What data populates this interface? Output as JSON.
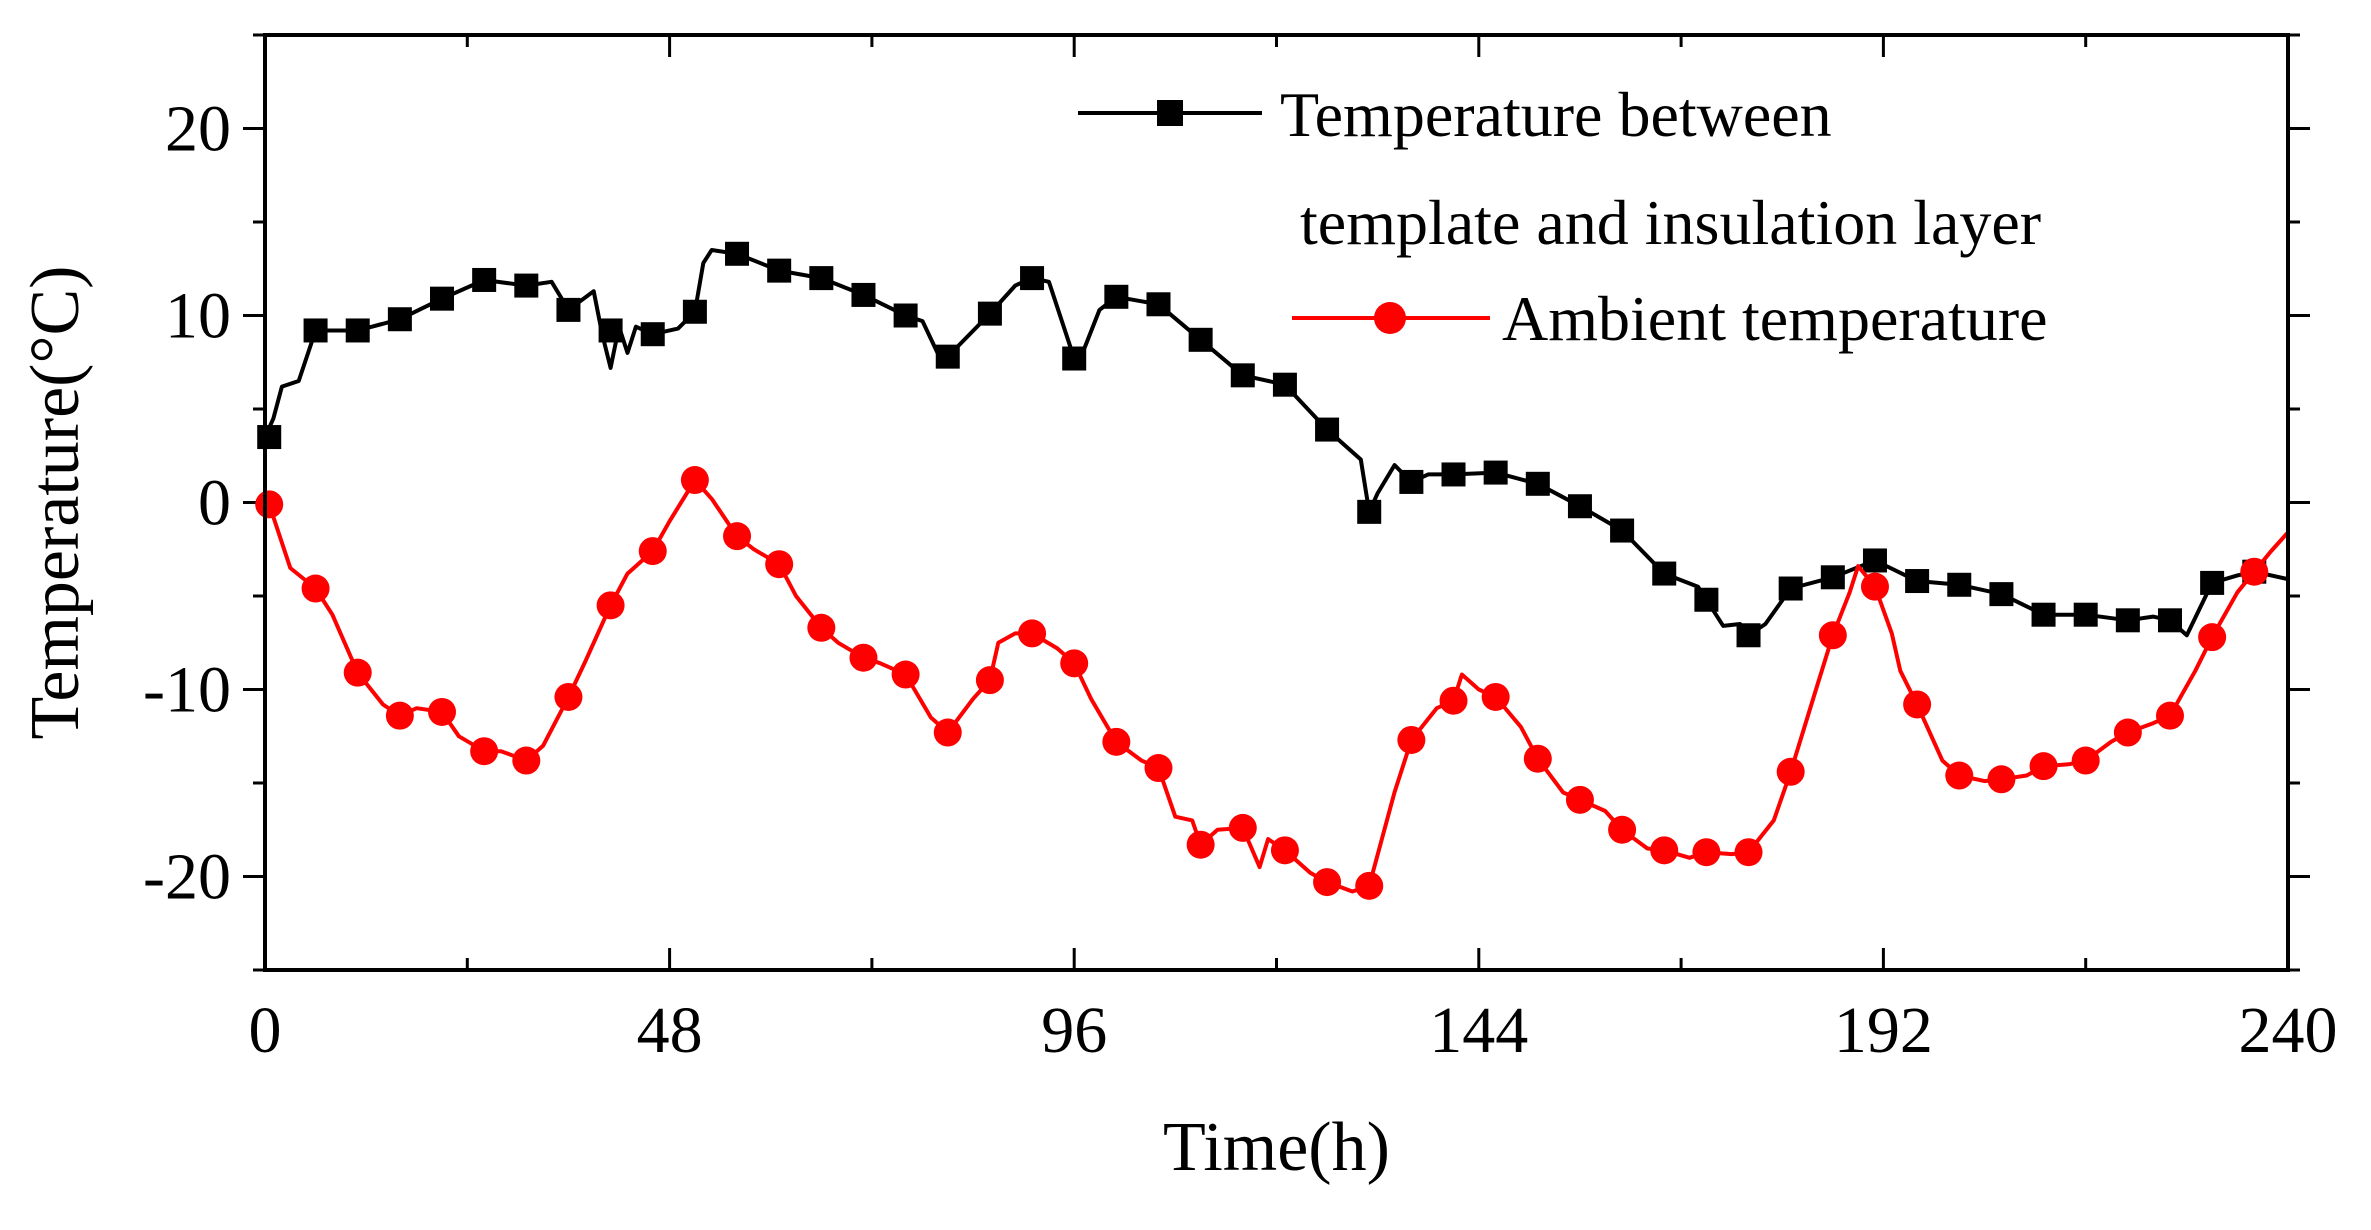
{
  "chart_data": {
    "type": "line",
    "title": "",
    "xlabel": "Time(h)",
    "ylabel": "Temperature(°C)",
    "xlim": [
      0,
      240
    ],
    "ylim": [
      -25,
      25
    ],
    "xticks": [
      0,
      48,
      96,
      144,
      192,
      240
    ],
    "xtick_labels": [
      "0",
      "48",
      "96",
      "144",
      "192",
      "240"
    ],
    "yticks": [
      20,
      10,
      0,
      -10,
      -20
    ],
    "ytick_labels": [
      "20",
      "10",
      "0",
      "-10",
      "-20"
    ],
    "legend_position": "top-right",
    "series": [
      {
        "name": "Temperature between template and insulation layer",
        "legend_lines": [
          "Temperature between",
          "template and insulation layer"
        ],
        "color": "#000000",
        "marker": "square",
        "x": [
          0.5,
          6,
          11,
          16,
          21,
          26,
          31,
          36,
          41,
          46,
          51,
          56,
          61,
          66,
          71,
          76,
          81,
          86,
          91,
          96,
          101,
          106,
          111,
          116,
          121,
          126,
          131,
          136,
          141,
          146,
          151,
          156,
          161,
          166,
          171,
          176,
          181,
          186,
          191,
          196,
          201,
          206,
          211,
          216,
          221,
          226,
          231,
          236
        ],
        "y": [
          3.5,
          9.2,
          9.2,
          9.8,
          10.9,
          11.9,
          11.6,
          10.3,
          9.2,
          9.0,
          10.2,
          13.3,
          12.4,
          12.0,
          11.1,
          10.0,
          7.8,
          10.1,
          12.0,
          7.7,
          11.0,
          10.6,
          8.7,
          6.8,
          6.3,
          3.9,
          -0.5,
          1.1,
          1.5,
          1.6,
          1.0,
          -0.2,
          -1.5,
          -3.8,
          -5.2,
          -7.1,
          -4.6,
          -4.0,
          -3.1,
          -4.2,
          -4.4,
          -4.9,
          -6.0,
          -6.0,
          -6.3,
          -6.3,
          -4.3,
          -3.7
        ],
        "line_x": [
          0,
          1,
          2,
          4,
          6,
          11,
          16,
          21,
          26,
          31,
          34,
          36,
          39,
          40,
          41,
          42,
          43,
          44,
          46,
          49,
          51,
          52,
          53,
          56,
          61,
          66,
          71,
          76,
          78,
          80,
          81,
          86,
          89,
          91,
          93,
          96,
          97,
          99,
          101,
          106,
          111,
          116,
          121,
          126,
          130,
          131,
          132,
          134,
          136,
          138,
          141,
          146,
          151,
          156,
          161,
          166,
          170,
          171,
          173,
          175,
          176,
          178,
          181,
          186,
          191,
          196,
          201,
          206,
          211,
          216,
          221,
          224,
          226,
          228,
          231,
          234,
          236,
          240
        ],
        "line_y": [
          3.5,
          4.5,
          6.2,
          6.5,
          9.2,
          9.2,
          9.8,
          10.9,
          11.9,
          11.6,
          11.8,
          10.3,
          11.3,
          9.0,
          7.2,
          9.4,
          8.0,
          9.4,
          9.0,
          9.3,
          10.2,
          12.8,
          13.5,
          13.3,
          12.4,
          12.0,
          11.1,
          10.0,
          9.7,
          7.8,
          7.8,
          10.1,
          11.6,
          12.0,
          11.8,
          7.7,
          8.0,
          10.3,
          11.0,
          10.6,
          8.7,
          6.8,
          6.3,
          3.9,
          2.3,
          -0.5,
          0.5,
          2.0,
          1.1,
          1.5,
          1.5,
          1.6,
          1.0,
          -0.2,
          -1.5,
          -3.8,
          -4.5,
          -5.2,
          -6.6,
          -6.5,
          -7.1,
          -6.5,
          -4.6,
          -4.0,
          -3.1,
          -4.2,
          -4.4,
          -4.9,
          -6.0,
          -6.0,
          -6.3,
          -6.1,
          -6.3,
          -7.1,
          -4.3,
          -3.9,
          -3.7,
          -4.1
        ]
      },
      {
        "name": "Ambient temperature",
        "legend_lines": [
          "Ambient temperature"
        ],
        "color": "#ff0000",
        "marker": "circle",
        "x": [
          0.5,
          6,
          11,
          16,
          21,
          26,
          31,
          36,
          41,
          46,
          51,
          56,
          61,
          66,
          71,
          76,
          81,
          86,
          91,
          96,
          101,
          106,
          111,
          116,
          121,
          126,
          131,
          136,
          141,
          146,
          151,
          156,
          161,
          166,
          171,
          176,
          181,
          186,
          191,
          196,
          201,
          206,
          211,
          216,
          221,
          226,
          231,
          236
        ],
        "y": [
          -0.1,
          -4.6,
          -9.1,
          -11.4,
          -11.2,
          -13.3,
          -13.8,
          -10.4,
          -5.5,
          -2.6,
          1.2,
          -1.8,
          -3.3,
          -6.7,
          -8.3,
          -9.2,
          -12.3,
          -9.5,
          -7.0,
          -8.6,
          -12.8,
          -14.2,
          -18.3,
          -17.4,
          -18.6,
          -20.3,
          -20.5,
          -12.7,
          -10.6,
          -10.4,
          -13.7,
          -15.9,
          -17.5,
          -18.6,
          -18.7,
          -18.7,
          -14.4,
          -7.1,
          -4.5,
          -10.8,
          -14.6,
          -14.8,
          -14.1,
          -13.8,
          -12.3,
          -11.4,
          -7.2,
          -3.7
        ],
        "line_x": [
          0,
          0.5,
          3,
          6,
          8,
          11,
          14,
          16,
          18,
          21,
          23,
          26,
          28,
          31,
          33,
          36,
          38,
          41,
          43,
          46,
          48,
          51,
          53,
          56,
          58,
          61,
          63,
          66,
          68,
          71,
          73,
          76,
          79,
          81,
          84,
          86,
          87,
          89,
          91,
          94,
          96,
          98,
          101,
          104,
          106,
          108,
          110,
          111,
          113,
          116,
          118,
          119,
          121,
          124,
          126,
          129,
          131,
          134,
          136,
          139,
          141,
          142,
          144,
          146,
          149,
          151,
          154,
          156,
          159,
          161,
          164,
          166,
          169,
          171,
          174,
          176,
          179,
          181,
          184,
          186,
          188,
          189,
          191,
          193,
          194,
          196,
          199,
          201,
          204,
          206,
          209,
          211,
          214,
          216,
          219,
          221,
          224,
          226,
          229,
          231,
          234,
          236,
          238,
          240
        ],
        "line_y": [
          0,
          -0.1,
          -3.5,
          -4.6,
          -6.0,
          -9.1,
          -10.8,
          -11.4,
          -11.0,
          -11.2,
          -12.5,
          -13.3,
          -13.3,
          -13.8,
          -13.0,
          -10.4,
          -8.5,
          -5.5,
          -3.8,
          -2.6,
          -1.0,
          1.2,
          0.2,
          -1.8,
          -2.5,
          -3.3,
          -5.0,
          -6.7,
          -7.5,
          -8.3,
          -8.6,
          -9.2,
          -11.5,
          -12.3,
          -10.5,
          -9.5,
          -7.5,
          -7.0,
          -7.0,
          -7.8,
          -8.6,
          -10.5,
          -12.8,
          -13.8,
          -14.2,
          -16.8,
          -17.0,
          -18.3,
          -17.5,
          -17.4,
          -19.5,
          -18.0,
          -18.6,
          -19.8,
          -20.3,
          -20.8,
          -20.5,
          -15.5,
          -12.7,
          -11.0,
          -10.6,
          -9.2,
          -10.0,
          -10.4,
          -12.0,
          -13.7,
          -15.5,
          -15.9,
          -16.5,
          -17.5,
          -18.5,
          -18.6,
          -19.0,
          -18.7,
          -18.8,
          -18.7,
          -17.0,
          -14.4,
          -10.0,
          -7.1,
          -4.8,
          -3.4,
          -4.5,
          -7.0,
          -9.0,
          -10.8,
          -13.8,
          -14.6,
          -14.9,
          -14.8,
          -14.6,
          -14.1,
          -14.0,
          -13.8,
          -12.8,
          -12.3,
          -11.8,
          -11.4,
          -9.0,
          -7.2,
          -4.8,
          -3.7,
          -2.6,
          -1.6
        ]
      }
    ]
  }
}
